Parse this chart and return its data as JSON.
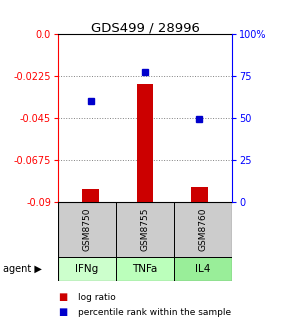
{
  "title": "GDS499 / 28996",
  "samples": [
    "GSM8750",
    "GSM8755",
    "GSM8760"
  ],
  "agents": [
    "IFNg",
    "TNFa",
    "IL4"
  ],
  "log_ratios": [
    -0.083,
    -0.027,
    -0.082
  ],
  "bar_base": -0.09,
  "percentile_ranks": [
    60,
    77,
    49
  ],
  "ylim_left": [
    -0.09,
    0.0
  ],
  "ylim_right": [
    0,
    100
  ],
  "yticks_left": [
    0.0,
    -0.0225,
    -0.045,
    -0.0675,
    -0.09
  ],
  "yticks_right": [
    100,
    75,
    50,
    25,
    0
  ],
  "bar_color": "#cc0000",
  "dot_color": "#0000cc",
  "sample_box_color": "#cccccc",
  "agent_colors": [
    "#ccffcc",
    "#bbffbb",
    "#99ee99"
  ],
  "legend_bar_label": "log ratio",
  "legend_dot_label": "percentile rank within the sample",
  "background_color": "#ffffff",
  "x_positions": [
    0,
    1,
    2
  ],
  "bar_width": 0.3,
  "xlim": [
    -0.6,
    2.6
  ]
}
